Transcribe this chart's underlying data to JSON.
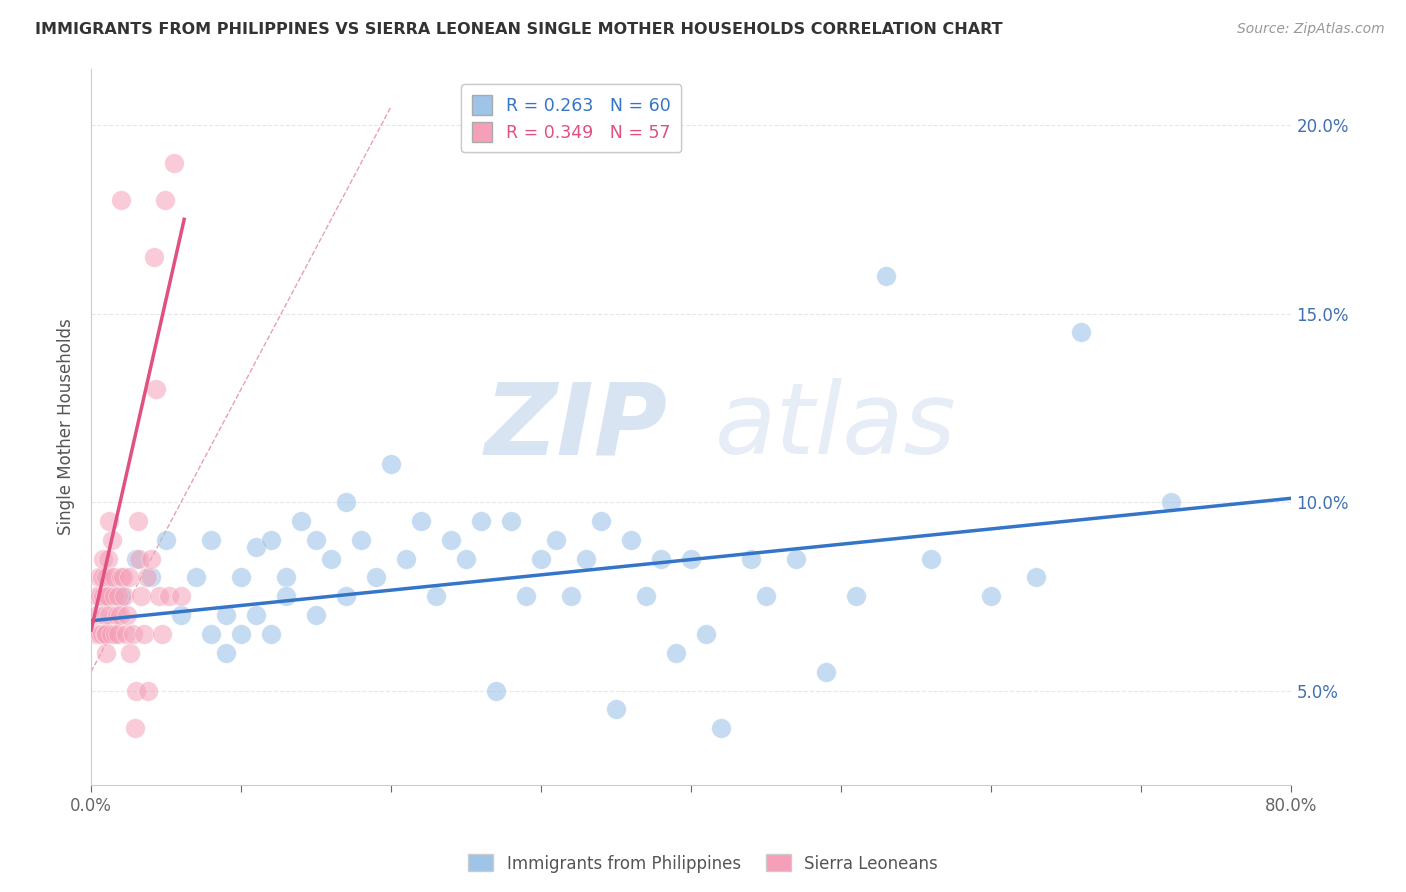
{
  "title": "IMMIGRANTS FROM PHILIPPINES VS SIERRA LEONEAN SINGLE MOTHER HOUSEHOLDS CORRELATION CHART",
  "source": "Source: ZipAtlas.com",
  "ylabel": "Single Mother Households",
  "xlim": [
    0.0,
    0.8
  ],
  "ylim": [
    0.025,
    0.215
  ],
  "watermark_zip": "ZIP",
  "watermark_atlas": "atlas",
  "watermark_color_zip": "#b8cfe8",
  "watermark_color_atlas": "#c8d8ee",
  "blue_scatter_x": [
    0.02,
    0.03,
    0.04,
    0.05,
    0.06,
    0.07,
    0.08,
    0.08,
    0.09,
    0.09,
    0.1,
    0.1,
    0.11,
    0.11,
    0.12,
    0.12,
    0.13,
    0.13,
    0.14,
    0.15,
    0.15,
    0.16,
    0.17,
    0.17,
    0.18,
    0.19,
    0.2,
    0.21,
    0.22,
    0.23,
    0.24,
    0.25,
    0.26,
    0.27,
    0.28,
    0.29,
    0.3,
    0.31,
    0.32,
    0.33,
    0.34,
    0.35,
    0.36,
    0.37,
    0.38,
    0.39,
    0.4,
    0.41,
    0.42,
    0.44,
    0.45,
    0.47,
    0.49,
    0.51,
    0.53,
    0.56,
    0.6,
    0.63,
    0.66,
    0.72
  ],
  "blue_scatter_y": [
    0.075,
    0.085,
    0.08,
    0.09,
    0.07,
    0.08,
    0.09,
    0.065,
    0.07,
    0.06,
    0.065,
    0.08,
    0.07,
    0.088,
    0.09,
    0.065,
    0.08,
    0.075,
    0.095,
    0.09,
    0.07,
    0.085,
    0.1,
    0.075,
    0.09,
    0.08,
    0.11,
    0.085,
    0.095,
    0.075,
    0.09,
    0.085,
    0.095,
    0.05,
    0.095,
    0.075,
    0.085,
    0.09,
    0.075,
    0.085,
    0.095,
    0.045,
    0.09,
    0.075,
    0.085,
    0.06,
    0.085,
    0.065,
    0.04,
    0.085,
    0.075,
    0.085,
    0.055,
    0.075,
    0.16,
    0.085,
    0.075,
    0.08,
    0.145,
    0.1
  ],
  "pink_scatter_x": [
    0.003,
    0.004,
    0.004,
    0.005,
    0.005,
    0.006,
    0.006,
    0.007,
    0.007,
    0.008,
    0.008,
    0.009,
    0.009,
    0.01,
    0.01,
    0.01,
    0.01,
    0.011,
    0.011,
    0.012,
    0.012,
    0.013,
    0.013,
    0.014,
    0.015,
    0.015,
    0.016,
    0.017,
    0.018,
    0.018,
    0.019,
    0.02,
    0.02,
    0.021,
    0.022,
    0.023,
    0.024,
    0.025,
    0.026,
    0.028,
    0.029,
    0.03,
    0.031,
    0.032,
    0.033,
    0.035,
    0.037,
    0.038,
    0.04,
    0.042,
    0.043,
    0.045,
    0.047,
    0.049,
    0.052,
    0.055,
    0.06
  ],
  "pink_scatter_y": [
    0.065,
    0.07,
    0.075,
    0.065,
    0.08,
    0.075,
    0.065,
    0.08,
    0.065,
    0.085,
    0.075,
    0.065,
    0.07,
    0.075,
    0.065,
    0.06,
    0.08,
    0.075,
    0.085,
    0.095,
    0.07,
    0.065,
    0.08,
    0.09,
    0.075,
    0.08,
    0.065,
    0.07,
    0.075,
    0.065,
    0.07,
    0.08,
    0.18,
    0.08,
    0.075,
    0.065,
    0.07,
    0.08,
    0.06,
    0.065,
    0.04,
    0.05,
    0.095,
    0.085,
    0.075,
    0.065,
    0.08,
    0.05,
    0.085,
    0.165,
    0.13,
    0.075,
    0.065,
    0.18,
    0.075,
    0.19,
    0.075
  ],
  "blue_line_x": [
    0.0,
    0.8
  ],
  "blue_line_y": [
    0.0685,
    0.101
  ],
  "pink_line_x": [
    0.0,
    0.062
  ],
  "pink_line_y": [
    0.066,
    0.175
  ],
  "ref_line_x": [
    0.0,
    0.2
  ],
  "ref_line_y": [
    0.055,
    0.205
  ],
  "blue_color": "#9ec4e8",
  "blue_line_color": "#3575c8",
  "pink_color": "#f5a0b8",
  "pink_line_color": "#e05080",
  "ref_line_color": "#e8a0b0",
  "background_color": "#ffffff",
  "grid_color": "#e8e8e8",
  "y_ticks": [
    0.05,
    0.1,
    0.15,
    0.2
  ],
  "y_tick_labels": [
    "5.0%",
    "10.0%",
    "15.0%",
    "20.0%"
  ],
  "x_ticks": [
    0.0,
    0.1,
    0.2,
    0.3,
    0.4,
    0.5,
    0.6,
    0.7,
    0.8
  ],
  "x_tick_labels_show": [
    "0.0%",
    "",
    "",
    "",
    "",
    "",
    "",
    "",
    "80.0%"
  ],
  "legend_r1_label": "R = 0.263",
  "legend_n1_label": "N = 60",
  "legend_r2_label": "R = 0.349",
  "legend_n2_label": "N = 57",
  "legend_bottom_label1": "Immigrants from Philippines",
  "legend_bottom_label2": "Sierra Leoneans"
}
